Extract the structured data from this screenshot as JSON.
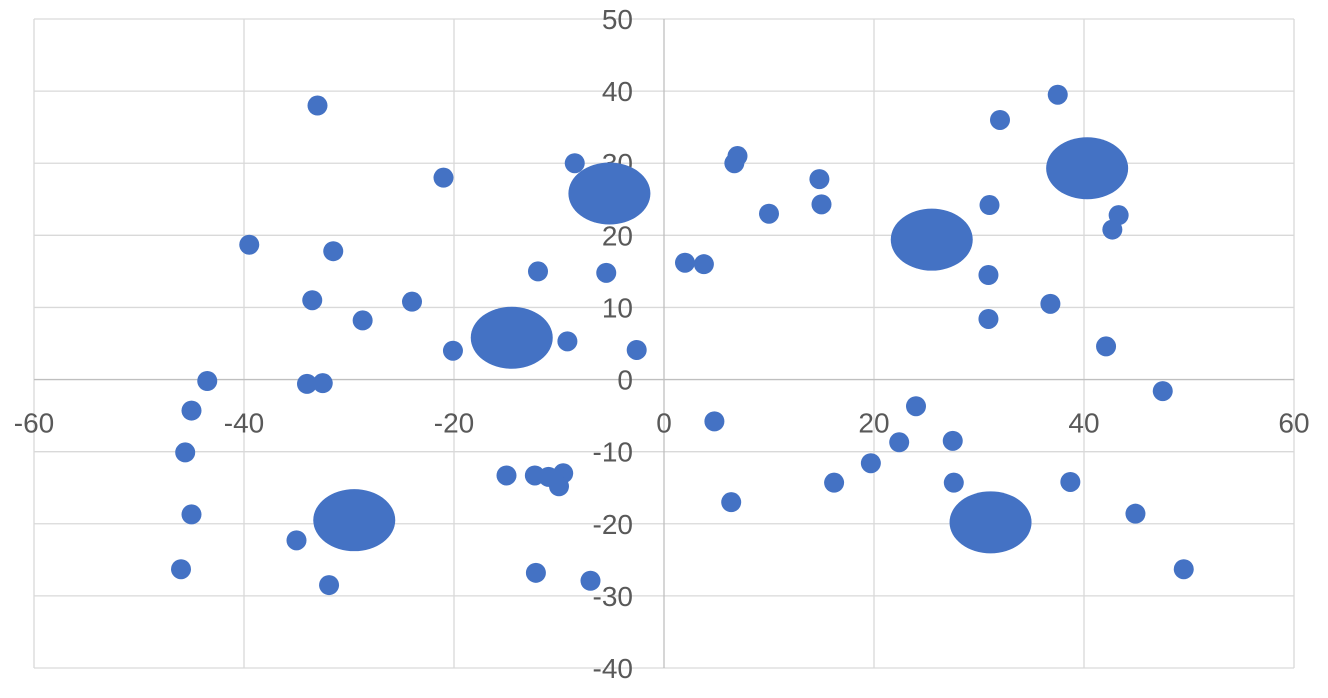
{
  "chart_data": {
    "type": "scatter",
    "title": "",
    "xlabel": "",
    "ylabel": "",
    "xlim": [
      -60,
      60
    ],
    "ylim": [
      -40,
      50
    ],
    "x_ticks": [
      -60,
      -40,
      -20,
      0,
      20,
      40,
      60
    ],
    "y_ticks": [
      -40,
      -30,
      -20,
      -10,
      0,
      10,
      20,
      30,
      40,
      50
    ],
    "grid": true,
    "legend": "none",
    "color": "#4472c4",
    "series": [
      {
        "marker": "small",
        "points": [
          [
            -33,
            38
          ],
          [
            -21,
            28
          ],
          [
            -8.5,
            30
          ],
          [
            7,
            31
          ],
          [
            6.7,
            30
          ],
          [
            14.8,
            27.8
          ],
          [
            37.5,
            39.5
          ],
          [
            32,
            36
          ],
          [
            15,
            24.3
          ],
          [
            10,
            23
          ],
          [
            31,
            24.2
          ],
          [
            43.3,
            22.8
          ],
          [
            42.7,
            20.8
          ],
          [
            -39.5,
            18.7
          ],
          [
            -31.5,
            17.8
          ],
          [
            2,
            16.2
          ],
          [
            3.8,
            16
          ],
          [
            -12,
            15
          ],
          [
            -5.5,
            14.8
          ],
          [
            30.9,
            14.5
          ],
          [
            -33.5,
            11
          ],
          [
            -24,
            10.8
          ],
          [
            36.8,
            10.5
          ],
          [
            -28.7,
            8.2
          ],
          [
            30.9,
            8.4
          ],
          [
            -9.2,
            5.3
          ],
          [
            42.1,
            4.6
          ],
          [
            -20.1,
            4
          ],
          [
            -2.6,
            4.1
          ],
          [
            -43.5,
            -0.2
          ],
          [
            -34,
            -0.6
          ],
          [
            -32.5,
            -0.5
          ],
          [
            47.5,
            -1.6
          ],
          [
            -45,
            -4.3
          ],
          [
            24,
            -3.7
          ],
          [
            4.8,
            -5.8
          ],
          [
            22.4,
            -8.7
          ],
          [
            27.5,
            -8.5
          ],
          [
            -45.6,
            -10.1
          ],
          [
            19.7,
            -11.6
          ],
          [
            -15,
            -13.3
          ],
          [
            -12.3,
            -13.3
          ],
          [
            -11,
            -13.5
          ],
          [
            -9.6,
            -13
          ],
          [
            -10,
            -14.8
          ],
          [
            16.2,
            -14.3
          ],
          [
            27.6,
            -14.3
          ],
          [
            38.7,
            -14.2
          ],
          [
            6.4,
            -17
          ],
          [
            -45,
            -18.7
          ],
          [
            44.9,
            -18.6
          ],
          [
            -35,
            -22.3
          ],
          [
            -46,
            -26.3
          ],
          [
            -12.2,
            -26.8
          ],
          [
            49.5,
            -26.3
          ],
          [
            -31.9,
            -28.5
          ],
          [
            -7,
            -27.9
          ]
        ]
      },
      {
        "marker": "large",
        "points": [
          [
            -5.2,
            25.8
          ],
          [
            -14.5,
            5.8
          ],
          [
            25.5,
            19.4
          ],
          [
            40.3,
            29.3
          ],
          [
            -29.5,
            -19.5
          ],
          [
            31.1,
            -19.8
          ]
        ]
      }
    ]
  }
}
